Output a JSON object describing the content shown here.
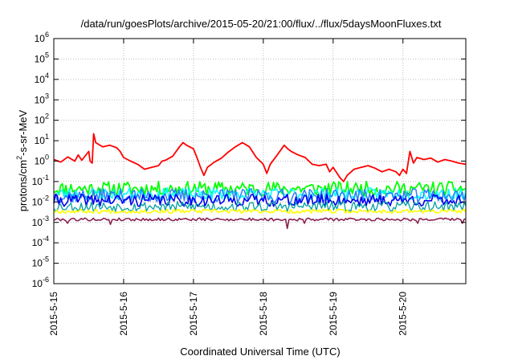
{
  "chart_data": {
    "type": "line",
    "title": "/data/run/goesPlots/archive/2015-05-20/21:00/flux/../flux/5daysMoonFluxes.txt",
    "xlabel": "Coordinated Universal Time (UTC)",
    "ylabel_base": "protons/cm",
    "ylabel_sup": "2",
    "ylabel_rest": "-s-sr-MeV",
    "y_scale": "log",
    "ylim": [
      1e-06,
      1000000.0
    ],
    "xlim": [
      0,
      5.9
    ],
    "grid": true,
    "y_ticks": [
      {
        "base": "10",
        "exp": "-6",
        "value": 1e-06
      },
      {
        "base": "10",
        "exp": "-5",
        "value": 1e-05
      },
      {
        "base": "10",
        "exp": "-4",
        "value": 0.0001
      },
      {
        "base": "10",
        "exp": "-3",
        "value": 0.001
      },
      {
        "base": "10",
        "exp": "-2",
        "value": 0.01
      },
      {
        "base": "10",
        "exp": "-1",
        "value": 0.1
      },
      {
        "base": "10",
        "exp": "0",
        "value": 1
      },
      {
        "base": "10",
        "exp": "1",
        "value": 10
      },
      {
        "base": "10",
        "exp": "2",
        "value": 100
      },
      {
        "base": "10",
        "exp": "3",
        "value": 1000
      },
      {
        "base": "10",
        "exp": "4",
        "value": 10000
      },
      {
        "base": "10",
        "exp": "5",
        "value": 100000
      },
      {
        "base": "10",
        "exp": "6",
        "value": 1000000
      }
    ],
    "x_ticks": [
      {
        "label": "2015-5-15",
        "value": 0
      },
      {
        "label": "2015-5-16",
        "value": 1
      },
      {
        "label": "2015-5-17",
        "value": 2
      },
      {
        "label": "2015-5-18",
        "value": 3
      },
      {
        "label": "2015-5-19",
        "value": 4
      },
      {
        "label": "2015-5-20",
        "value": 5
      }
    ],
    "series": [
      {
        "color": "#ff0000",
        "width": 1.8,
        "mode": "pts",
        "points": [
          [
            0,
            1.2
          ],
          [
            0.1,
            0.9
          ],
          [
            0.2,
            1.6
          ],
          [
            0.3,
            1.0
          ],
          [
            0.35,
            2.0
          ],
          [
            0.4,
            1.1
          ],
          [
            0.45,
            1.8
          ],
          [
            0.5,
            3.0
          ],
          [
            0.52,
            1.0
          ],
          [
            0.55,
            0.8
          ],
          [
            0.57,
            22
          ],
          [
            0.6,
            8
          ],
          [
            0.7,
            5
          ],
          [
            0.8,
            6
          ],
          [
            0.9,
            4.5
          ],
          [
            0.95,
            3
          ],
          [
            1.0,
            1.5
          ],
          [
            1.1,
            1.0
          ],
          [
            1.2,
            0.7
          ],
          [
            1.3,
            0.4
          ],
          [
            1.4,
            0.5
          ],
          [
            1.5,
            0.6
          ],
          [
            1.55,
            1.0
          ],
          [
            1.6,
            1.1
          ],
          [
            1.7,
            1.7
          ],
          [
            1.8,
            5
          ],
          [
            1.85,
            8
          ],
          [
            1.9,
            6
          ],
          [
            2.0,
            4
          ],
          [
            2.05,
            1.5
          ],
          [
            2.1,
            0.5
          ],
          [
            2.15,
            0.2
          ],
          [
            2.2,
            0.5
          ],
          [
            2.3,
            0.9
          ],
          [
            2.4,
            1.4
          ],
          [
            2.5,
            2.8
          ],
          [
            2.6,
            5
          ],
          [
            2.7,
            8
          ],
          [
            2.8,
            5
          ],
          [
            2.9,
            1.5
          ],
          [
            3.0,
            0.7
          ],
          [
            3.05,
            0.25
          ],
          [
            3.1,
            0.7
          ],
          [
            3.2,
            2.0
          ],
          [
            3.3,
            6
          ],
          [
            3.35,
            4
          ],
          [
            3.4,
            3
          ],
          [
            3.5,
            2
          ],
          [
            3.6,
            1.5
          ],
          [
            3.7,
            0.7
          ],
          [
            3.8,
            0.6
          ],
          [
            3.9,
            0.7
          ],
          [
            3.95,
            0.3
          ],
          [
            4.0,
            0.5
          ],
          [
            4.1,
            0.15
          ],
          [
            4.15,
            0.1
          ],
          [
            4.2,
            0.2
          ],
          [
            4.3,
            0.4
          ],
          [
            4.4,
            0.5
          ],
          [
            4.5,
            0.6
          ],
          [
            4.6,
            0.45
          ],
          [
            4.7,
            0.3
          ],
          [
            4.8,
            0.4
          ],
          [
            4.9,
            0.3
          ],
          [
            4.95,
            0.2
          ],
          [
            5.0,
            0.4
          ],
          [
            5.05,
            0.25
          ],
          [
            5.1,
            3
          ],
          [
            5.15,
            0.8
          ],
          [
            5.2,
            1.5
          ],
          [
            5.3,
            1.2
          ],
          [
            5.4,
            1.4
          ],
          [
            5.5,
            0.9
          ],
          [
            5.6,
            1.2
          ],
          [
            5.7,
            1.0
          ],
          [
            5.8,
            0.8
          ],
          [
            5.9,
            0.7
          ]
        ]
      },
      {
        "color": "#00ff00",
        "width": 1.8,
        "mode": "band",
        "center": 0.045,
        "spread": 0.35,
        "seed": 11
      },
      {
        "color": "#00ffff",
        "width": 1.5,
        "mode": "band",
        "center": 0.025,
        "spread": 0.3,
        "seed": 23
      },
      {
        "color": "#2a7fff",
        "width": 1.5,
        "mode": "band",
        "center": 0.02,
        "spread": 0.35,
        "seed": 37
      },
      {
        "color": "#0000ee",
        "width": 1.6,
        "mode": "band",
        "center": 0.012,
        "spread": 0.3,
        "seed": 41
      },
      {
        "color": "#00a0a0",
        "width": 1.3,
        "mode": "band",
        "center": 0.006,
        "spread": 0.25,
        "seed": 53
      },
      {
        "color": "#ffff00",
        "width": 1.6,
        "mode": "band",
        "center": 0.0035,
        "spread": 0.1,
        "seed": 67
      },
      {
        "color": "#8b2252",
        "width": 1.6,
        "mode": "band",
        "center": 0.0014,
        "spread": 0.07,
        "seed": 79,
        "dips": [
          [
            0.2,
            0.0009
          ],
          [
            0.8,
            0.0008
          ],
          [
            3.35,
            0.0005
          ],
          [
            3.6,
            0.0009
          ],
          [
            5.2,
            0.0009
          ],
          [
            5.85,
            0.0009
          ]
        ]
      }
    ]
  }
}
